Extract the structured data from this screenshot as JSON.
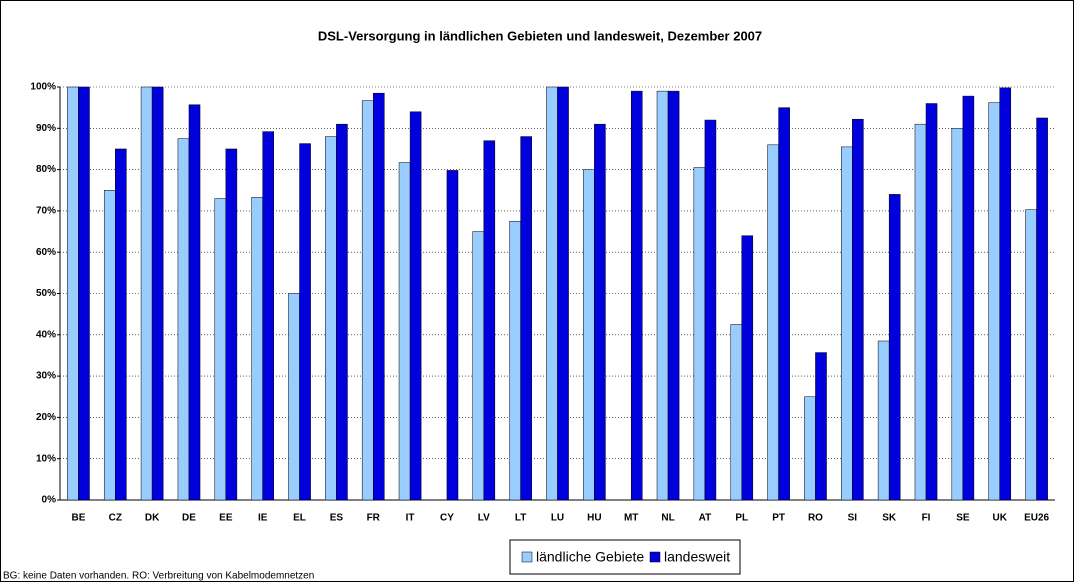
{
  "chart_data": {
    "type": "bar",
    "title": "DSL-Versorgung in ländlichen Gebieten und landesweit, Dezember 2007",
    "categories": [
      "BE",
      "CZ",
      "DK",
      "DE",
      "EE",
      "IE",
      "EL",
      "ES",
      "FR",
      "IT",
      "CY",
      "LV",
      "LT",
      "LU",
      "HU",
      "MT",
      "NL",
      "AT",
      "PL",
      "PT",
      "RO",
      "SI",
      "SK",
      "FI",
      "SE",
      "UK",
      "EU26"
    ],
    "series": [
      {
        "name": "ländliche Gebiete",
        "color": "#99ccff",
        "values": [
          100,
          75,
          100,
          87.5,
          73,
          73.3,
          50,
          88,
          96.7,
          81.7,
          null,
          65,
          67.5,
          100,
          80,
          null,
          99,
          80.5,
          42.5,
          86,
          25,
          85.5,
          38.5,
          91,
          90,
          96.2,
          70.3
        ]
      },
      {
        "name": "landesweit",
        "color": "#0000dd",
        "values": [
          100,
          85,
          100,
          95.7,
          85,
          89.2,
          86.3,
          91,
          98.5,
          94,
          79.8,
          87,
          88,
          100,
          91,
          99,
          99,
          92,
          64,
          95,
          35.7,
          92.2,
          74,
          96,
          97.8,
          99.8,
          92.5
        ]
      }
    ],
    "ylim": [
      0,
      100
    ],
    "yticks": [
      {
        "value": 0,
        "label": "0%"
      },
      {
        "value": 10,
        "label": "10%"
      },
      {
        "value": 20,
        "label": "20%"
      },
      {
        "value": 30,
        "label": "30%"
      },
      {
        "value": 40,
        "label": "40%"
      },
      {
        "value": 50,
        "label": "50%"
      },
      {
        "value": 60,
        "label": "60%"
      },
      {
        "value": 70,
        "label": "70%"
      },
      {
        "value": 80,
        "label": "80%"
      },
      {
        "value": 90,
        "label": "90%"
      },
      {
        "value": 100,
        "label": "100%"
      }
    ],
    "grid": true,
    "legend": "bottom",
    "note": "BG: keine Daten vorhanden. RO: Verbreitung von Kabelmodemnetzen"
  }
}
